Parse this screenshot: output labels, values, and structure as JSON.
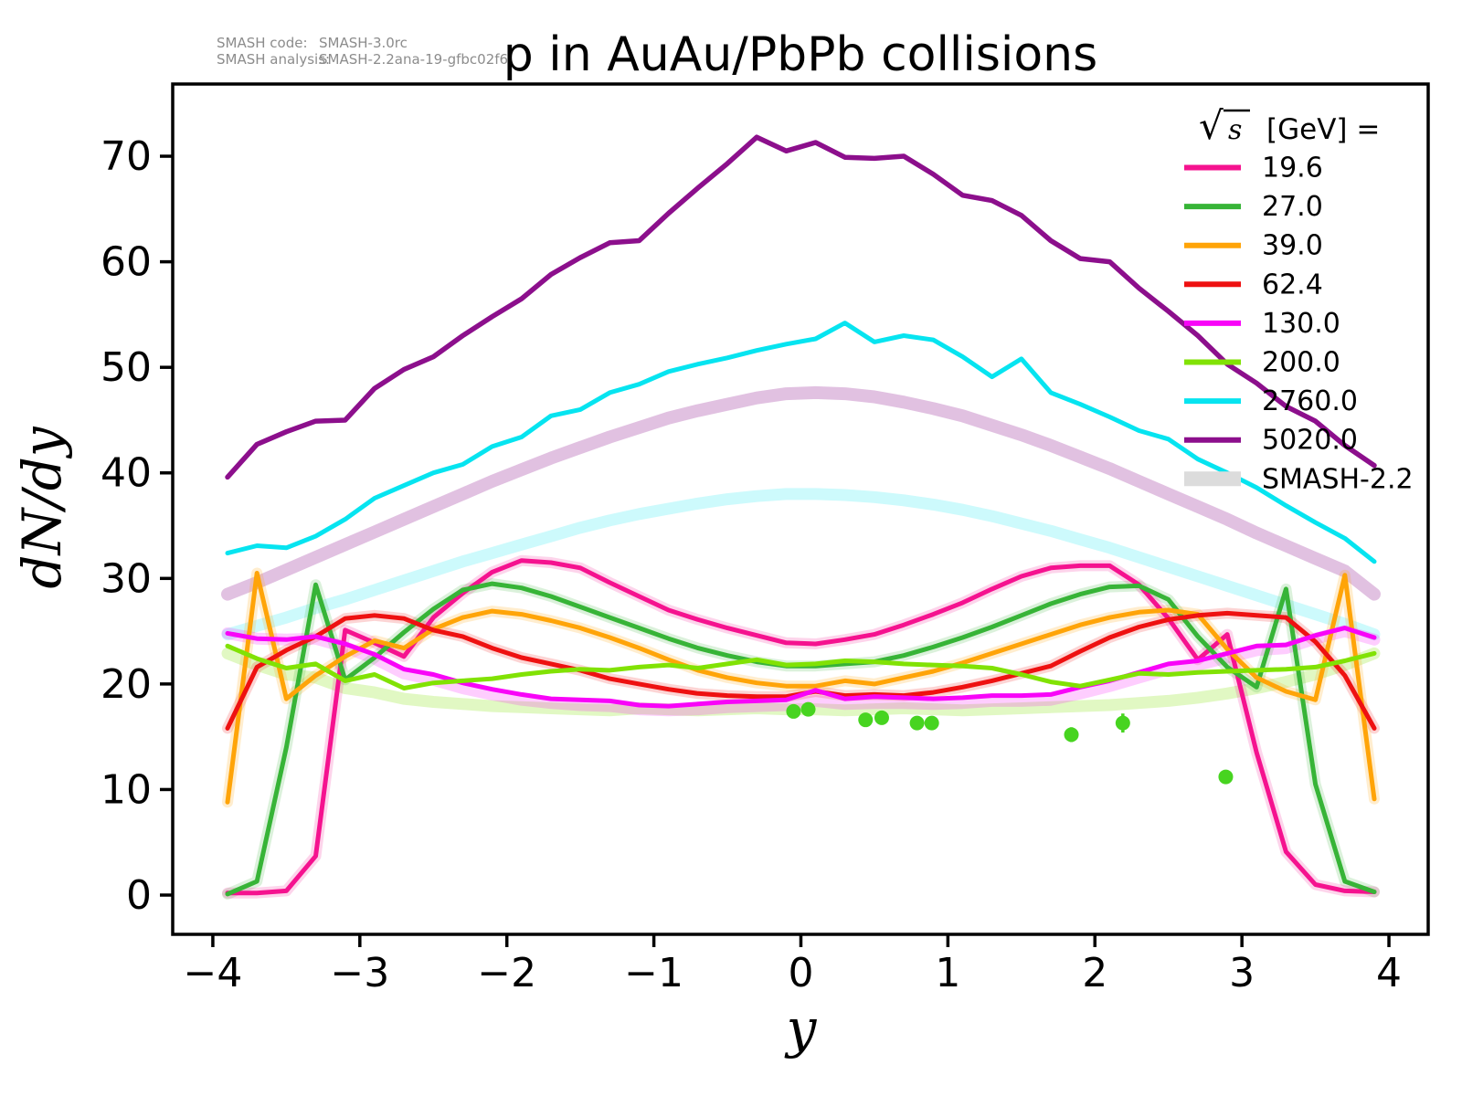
{
  "title": "p in AuAu/PbPb collisions",
  "annotations": {
    "code_label": "SMASH code:",
    "code_value": "SMASH-3.0rc",
    "analysis_label": "SMASH analysis:",
    "analysis_value": "SMASH-2.2ana-19-gfbc02f6"
  },
  "axis": {
    "xlabel": "y",
    "ylabel": "dN/dy"
  },
  "legend": {
    "sqrt": "√",
    "sqrt_arg": "s",
    "units": "[GeV] =",
    "position": "upper right",
    "entries": [
      {
        "label": "19.6",
        "kind": "line",
        "color": "#f5128f"
      },
      {
        "label": "27.0",
        "kind": "line",
        "color": "#37b437"
      },
      {
        "label": "39.0",
        "kind": "line",
        "color": "#ffa408"
      },
      {
        "label": "62.4",
        "kind": "line",
        "color": "#ee1111"
      },
      {
        "label": "130.0",
        "kind": "line",
        "color": "#f804f8"
      },
      {
        "label": "200.0",
        "kind": "line",
        "color": "#81e204"
      },
      {
        "label": "2760.0",
        "kind": "line",
        "color": "#06e4f0"
      },
      {
        "label": "5020.0",
        "kind": "line",
        "color": "#8c0f8c"
      },
      {
        "label": "SMASH-2.2",
        "kind": "band",
        "color": "#dcdcdc"
      }
    ]
  },
  "chart_data": {
    "type": "line",
    "title": "p in AuAu/PbPb collisions",
    "xlabel": "y",
    "ylabel": "dN/dy",
    "xlim": [
      -4.273,
      4.267
    ],
    "ylim": [
      -3.72,
      76.84
    ],
    "xticks": [
      -4,
      -3,
      -2,
      -1,
      0,
      1,
      2,
      3,
      4
    ],
    "yticks": [
      0,
      10,
      20,
      30,
      40,
      50,
      60,
      70
    ],
    "grid": false,
    "x": [
      -3.9,
      -3.7,
      -3.5,
      -3.3,
      -3.1,
      -2.9,
      -2.7,
      -2.5,
      -2.3,
      -2.1,
      -1.9,
      -1.7,
      -1.5,
      -1.3,
      -1.1,
      -0.9,
      -0.7,
      -0.5,
      -0.3,
      -0.1,
      0.1,
      0.3,
      0.5,
      0.7,
      0.9,
      1.1,
      1.3,
      1.5,
      1.7,
      1.9,
      2.1,
      2.3,
      2.5,
      2.7,
      2.9,
      3.1,
      3.3,
      3.5,
      3.7,
      3.9
    ],
    "series": [
      {
        "name": "19.6",
        "color": "#f5128f",
        "width": 5,
        "values": [
          0.2,
          0.2,
          0.4,
          3.7,
          25.1,
          23.9,
          22.6,
          26.3,
          28.6,
          30.6,
          31.7,
          31.5,
          31.0,
          29.6,
          28.3,
          27.0,
          26.1,
          25.3,
          24.6,
          23.9,
          23.8,
          24.2,
          24.7,
          25.6,
          26.6,
          27.7,
          29.0,
          30.2,
          31.0,
          31.2,
          31.2,
          29.4,
          26.2,
          22.3,
          24.7,
          13.5,
          4.1,
          1.0,
          0.4,
          0.3
        ]
      },
      {
        "name": "27.0",
        "color": "#37b437",
        "width": 5,
        "values": [
          0.1,
          1.3,
          14.0,
          29.4,
          20.4,
          22.5,
          24.9,
          27.1,
          28.9,
          29.5,
          29.1,
          28.3,
          27.3,
          26.3,
          25.3,
          24.3,
          23.4,
          22.7,
          22.1,
          21.7,
          21.7,
          21.9,
          22.1,
          22.7,
          23.5,
          24.4,
          25.4,
          26.5,
          27.6,
          28.5,
          29.2,
          29.3,
          28.0,
          24.5,
          21.6,
          19.7,
          29.0,
          10.5,
          1.3,
          0.3
        ]
      },
      {
        "name": "39.0",
        "color": "#ffa408",
        "width": 5,
        "values": [
          8.8,
          30.5,
          18.6,
          20.8,
          22.6,
          24.1,
          23.4,
          25.2,
          26.3,
          26.9,
          26.6,
          26.0,
          25.3,
          24.4,
          23.4,
          22.3,
          21.3,
          20.6,
          20.1,
          19.8,
          19.8,
          20.3,
          20.0,
          20.6,
          21.2,
          22.0,
          22.9,
          23.8,
          24.7,
          25.6,
          26.3,
          26.8,
          27.0,
          26.6,
          23.3,
          20.6,
          19.3,
          18.5,
          30.3,
          9.1
        ]
      },
      {
        "name": "62.4",
        "color": "#ee1111",
        "width": 5,
        "values": [
          15.8,
          21.6,
          23.2,
          24.5,
          26.2,
          26.5,
          26.2,
          25.1,
          24.5,
          23.4,
          22.5,
          21.9,
          21.3,
          20.5,
          20.0,
          19.5,
          19.1,
          18.9,
          18.8,
          18.8,
          19.3,
          18.9,
          19.0,
          18.9,
          19.2,
          19.7,
          20.3,
          21.0,
          21.7,
          23.1,
          24.4,
          25.4,
          26.1,
          26.5,
          26.7,
          26.5,
          26.3,
          24.0,
          20.8,
          15.8
        ]
      },
      {
        "name": "130.0",
        "color": "#f804f8",
        "width": 5,
        "values": [
          24.8,
          24.3,
          24.2,
          24.5,
          23.8,
          22.8,
          21.4,
          20.9,
          20.1,
          19.5,
          19.0,
          18.6,
          18.5,
          18.4,
          18.0,
          17.9,
          18.1,
          18.3,
          18.4,
          18.5,
          19.4,
          18.6,
          18.8,
          18.7,
          18.6,
          18.7,
          18.9,
          18.9,
          19.0,
          19.7,
          20.3,
          21.1,
          21.9,
          22.2,
          22.9,
          23.6,
          23.7,
          24.6,
          25.3,
          24.4
        ]
      },
      {
        "name": "200.0",
        "color": "#81e204",
        "width": 5,
        "values": [
          23.6,
          22.4,
          21.5,
          21.9,
          20.3,
          20.9,
          19.6,
          20.1,
          20.3,
          20.5,
          20.9,
          21.2,
          21.4,
          21.3,
          21.6,
          21.8,
          21.5,
          21.9,
          22.3,
          21.8,
          21.9,
          22.2,
          22.1,
          21.9,
          21.8,
          21.7,
          21.5,
          20.9,
          20.2,
          19.8,
          20.4,
          21.0,
          20.9,
          21.1,
          21.2,
          21.3,
          21.4,
          21.6,
          22.2,
          22.9
        ]
      },
      {
        "name": "2760.0",
        "color": "#06e4f0",
        "width": 5,
        "values": [
          32.4,
          33.1,
          32.9,
          34.0,
          35.6,
          37.6,
          38.8,
          40.0,
          40.8,
          42.5,
          43.4,
          45.4,
          46.0,
          47.6,
          48.4,
          49.6,
          50.3,
          50.9,
          51.6,
          52.2,
          52.7,
          54.2,
          52.4,
          53.0,
          52.6,
          51.0,
          49.1,
          50.8,
          47.6,
          46.5,
          45.3,
          44.0,
          43.2,
          41.3,
          40.0,
          38.6,
          36.9,
          35.3,
          33.8,
          31.6
        ]
      },
      {
        "name": "5020.0",
        "color": "#8c0f8c",
        "width": 5.5,
        "values": [
          39.6,
          42.7,
          43.9,
          44.9,
          45.0,
          48.0,
          49.8,
          51.0,
          53.0,
          54.8,
          56.5,
          58.8,
          60.4,
          61.8,
          62.0,
          64.6,
          67.0,
          69.3,
          71.8,
          70.5,
          71.3,
          69.9,
          69.8,
          70.0,
          68.3,
          66.3,
          65.8,
          64.4,
          62.0,
          60.3,
          60.0,
          57.5,
          55.3,
          53.0,
          50.3,
          48.5,
          46.3,
          44.9,
          42.6,
          40.7
        ]
      }
    ],
    "smash22_bands": [
      {
        "name": "SMASH-2.2 5020.0",
        "color": "#8c0f8c",
        "alpha": 0.26,
        "width": 14,
        "values": [
          28.5,
          29.6,
          30.8,
          32.0,
          33.2,
          34.4,
          35.6,
          36.8,
          38.0,
          39.2,
          40.3,
          41.4,
          42.4,
          43.4,
          44.3,
          45.2,
          45.9,
          46.5,
          47.1,
          47.5,
          47.6,
          47.5,
          47.2,
          46.7,
          46.1,
          45.4,
          44.5,
          43.6,
          42.6,
          41.5,
          40.4,
          39.2,
          38.0,
          36.8,
          35.6,
          34.3,
          33.1,
          31.9,
          30.7,
          28.5
        ]
      },
      {
        "name": "SMASH-2.2 2760.0",
        "color": "#06e4f0",
        "alpha": 0.2,
        "width": 13,
        "values": [
          24.7,
          25.5,
          26.3,
          27.2,
          28.0,
          28.9,
          29.8,
          30.7,
          31.6,
          32.4,
          33.2,
          34.0,
          34.8,
          35.5,
          36.1,
          36.6,
          37.1,
          37.5,
          37.8,
          38.0,
          38.0,
          37.9,
          37.7,
          37.4,
          37.0,
          36.5,
          35.9,
          35.2,
          34.5,
          33.7,
          32.9,
          32.0,
          31.1,
          30.2,
          29.3,
          28.4,
          27.5,
          26.6,
          25.7,
          24.7
        ]
      },
      {
        "name": "SMASH-2.2 200.0",
        "color": "#81e204",
        "alpha": 0.24,
        "width": 13,
        "values": [
          22.9,
          21.8,
          20.9,
          20.6,
          19.6,
          19.2,
          18.6,
          18.3,
          18.1,
          17.9,
          17.8,
          17.7,
          17.6,
          17.5,
          17.7,
          17.6,
          17.5,
          17.6,
          17.7,
          17.6,
          17.6,
          17.5,
          17.6,
          17.7,
          17.6,
          17.5,
          17.6,
          17.7,
          17.8,
          17.9,
          18.0,
          18.2,
          18.4,
          18.7,
          19.1,
          19.6,
          20.2,
          20.9,
          21.8,
          22.9
        ]
      },
      {
        "name": "SMASH-2.2 130.0",
        "color": "#f804f8",
        "alpha": 0.2,
        "width": 13,
        "values": [
          24.8,
          24.3,
          24.2,
          24.3,
          23.5,
          22.4,
          21.0,
          20.4,
          19.6,
          19.0,
          18.5,
          18.2,
          18.0,
          17.9,
          17.6,
          17.5,
          17.6,
          17.8,
          17.9,
          18.0,
          18.4,
          18.1,
          18.2,
          18.2,
          18.1,
          18.2,
          18.4,
          18.4,
          18.5,
          19.1,
          19.8,
          20.6,
          21.4,
          21.8,
          22.5,
          23.2,
          23.4,
          24.3,
          25.0,
          24.2
        ]
      },
      {
        "name": "SMASH-2.2 62.4",
        "color": "#ee1111",
        "alpha": 0.18,
        "width": 12,
        "follows": "62.4"
      },
      {
        "name": "SMASH-2.2 39.0",
        "color": "#ffa408",
        "alpha": 0.2,
        "width": 12,
        "follows": "39.0"
      },
      {
        "name": "SMASH-2.2 27.0",
        "color": "#37b437",
        "alpha": 0.18,
        "width": 12,
        "follows": "27.0"
      },
      {
        "name": "SMASH-2.2 19.6",
        "color": "#f5128f",
        "alpha": 0.18,
        "width": 12,
        "follows": "19.6"
      }
    ],
    "data_points": {
      "color": "#47d420",
      "marker_radius": 8,
      "points": [
        {
          "x": -0.05,
          "y": 17.4,
          "err": 0
        },
        {
          "x": 0.05,
          "y": 17.6,
          "err": 0
        },
        {
          "x": 0.44,
          "y": 16.6,
          "err": 0
        },
        {
          "x": 0.55,
          "y": 16.8,
          "err": 0
        },
        {
          "x": 0.79,
          "y": 16.3,
          "err": 0
        },
        {
          "x": 0.89,
          "y": 16.3,
          "err": 0
        },
        {
          "x": 1.84,
          "y": 15.2,
          "err": 0.7
        },
        {
          "x": 2.19,
          "y": 16.3,
          "err": 0.9
        },
        {
          "x": 2.89,
          "y": 11.2,
          "err": 0.3
        }
      ]
    }
  }
}
